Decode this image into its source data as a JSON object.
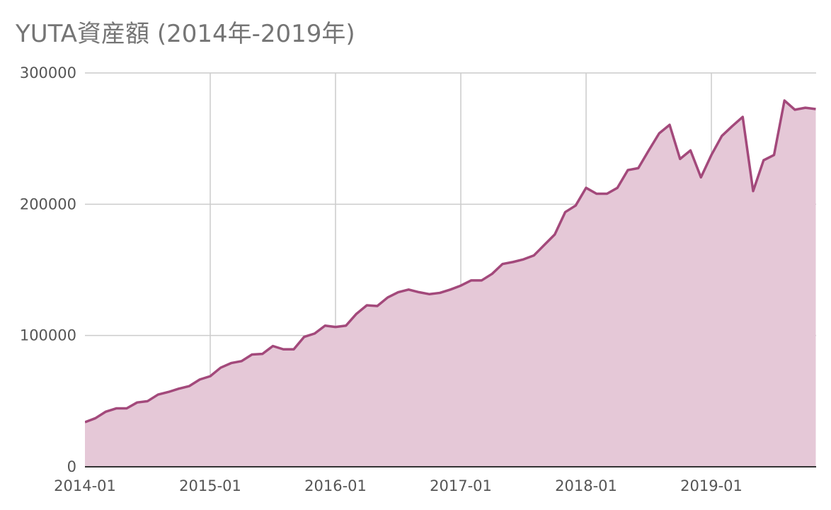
{
  "chart_data": {
    "type": "area",
    "title": "YUTA資産額 (2014年-2019年)",
    "xlabel": "",
    "ylabel": "",
    "ylim": [
      0,
      300000
    ],
    "y_ticks": [
      "0",
      "100000",
      "200000",
      "300000"
    ],
    "x_ticks": [
      "2014-01",
      "2015-01",
      "2016-01",
      "2017-01",
      "2018-01",
      "2019-01"
    ],
    "x_range": [
      "2014-01",
      "2019-10"
    ],
    "grid": true,
    "legend": "none",
    "series": [
      {
        "x": [
          "2014-01",
          "2014-02",
          "2014-03",
          "2014-04",
          "2014-05",
          "2014-06",
          "2014-07",
          "2014-08",
          "2014-09",
          "2014-10",
          "2014-11",
          "2014-12",
          "2015-01",
          "2015-02",
          "2015-03",
          "2015-04",
          "2015-05",
          "2015-06",
          "2015-07",
          "2015-08",
          "2015-09",
          "2015-10",
          "2015-11",
          "2015-12",
          "2016-01",
          "2016-02",
          "2016-03",
          "2016-04",
          "2016-05",
          "2016-06",
          "2016-07",
          "2016-08",
          "2016-09",
          "2016-10",
          "2016-11",
          "2016-12",
          "2017-01",
          "2017-02",
          "2017-03",
          "2017-04",
          "2017-05",
          "2017-06",
          "2017-07",
          "2017-08",
          "2017-09",
          "2017-10",
          "2017-11",
          "2017-12",
          "2018-01",
          "2018-02",
          "2018-03",
          "2018-04",
          "2018-05",
          "2018-06",
          "2018-07",
          "2018-08",
          "2018-09",
          "2018-10",
          "2018-11",
          "2018-12",
          "2019-01",
          "2019-02",
          "2019-03",
          "2019-04",
          "2019-05",
          "2019-06",
          "2019-07",
          "2019-08",
          "2019-09",
          "2019-10",
          "2019-11"
        ],
        "values": [
          34000,
          37000,
          42000,
          44500,
          44500,
          49000,
          50000,
          55000,
          57000,
          59500,
          61500,
          66500,
          69000,
          75500,
          79000,
          80500,
          85500,
          86000,
          92000,
          89500,
          89500,
          99000,
          101500,
          107500,
          106500,
          107500,
          116500,
          123000,
          122500,
          129000,
          133000,
          135000,
          133000,
          131500,
          132500,
          135000,
          138000,
          142000,
          142000,
          147000,
          154500,
          156000,
          158000,
          161000,
          169000,
          177000,
          194000,
          199000,
          212500,
          208000,
          208000,
          212500,
          226000,
          227500,
          241000,
          254000,
          260500,
          234500,
          241000,
          220500,
          237500,
          252000,
          259500,
          266500,
          210000,
          233500,
          237500,
          279000,
          272000,
          273500,
          272500
        ]
      }
    ],
    "colors": {
      "line": "#a3497b",
      "fill": "#e5c8d7",
      "grid": "#cccccc",
      "axis": "#333333"
    }
  }
}
